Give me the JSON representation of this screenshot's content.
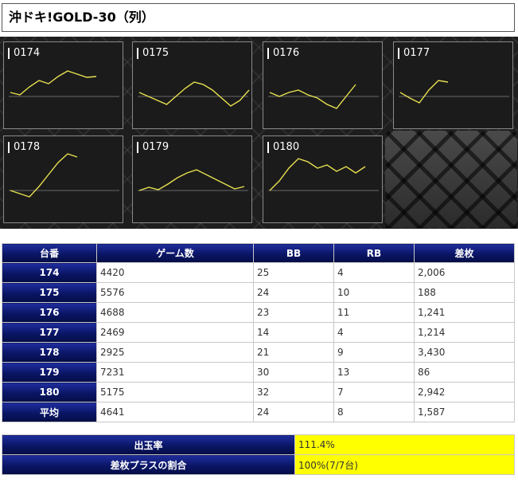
{
  "page": {
    "title": "沖ドキ!GOLD-30（列）"
  },
  "graphs": [
    {
      "label": "0174",
      "trend": [
        0.55,
        0.52,
        0.62,
        0.7,
        0.66,
        0.75,
        0.82,
        0.78,
        0.74,
        0.75
      ]
    },
    {
      "label": "0175",
      "trend": [
        0.55,
        0.5,
        0.45,
        0.4,
        0.5,
        0.6,
        0.68,
        0.65,
        0.58,
        0.48,
        0.38,
        0.45,
        0.58
      ]
    },
    {
      "label": "0176",
      "trend": [
        0.55,
        0.5,
        0.55,
        0.58,
        0.52,
        0.48,
        0.4,
        0.35,
        0.5,
        0.65
      ]
    },
    {
      "label": "0177",
      "trend": [
        0.55,
        0.48,
        0.42,
        0.58,
        0.7,
        0.68
      ]
    },
    {
      "label": "0178",
      "trend": [
        0.5,
        0.46,
        0.42,
        0.55,
        0.7,
        0.85,
        0.96,
        0.92
      ]
    },
    {
      "label": "0179",
      "trend": [
        0.5,
        0.54,
        0.51,
        0.58,
        0.66,
        0.72,
        0.76,
        0.7,
        0.64,
        0.58,
        0.52,
        0.55
      ]
    },
    {
      "label": "0180",
      "trend": [
        0.5,
        0.62,
        0.78,
        0.9,
        0.86,
        0.78,
        0.82,
        0.74,
        0.8,
        0.72,
        0.8
      ]
    }
  ],
  "table": {
    "headers": [
      "台番",
      "ゲーム数",
      "BB",
      "RB",
      "差枚"
    ],
    "rows": [
      [
        "174",
        "4420",
        "25",
        "4",
        "2,006"
      ],
      [
        "175",
        "5576",
        "24",
        "10",
        "188"
      ],
      [
        "176",
        "4688",
        "23",
        "11",
        "1,241"
      ],
      [
        "177",
        "2469",
        "14",
        "4",
        "1,214"
      ],
      [
        "178",
        "2925",
        "21",
        "9",
        "3,430"
      ],
      [
        "179",
        "7231",
        "30",
        "13",
        "86"
      ],
      [
        "180",
        "5175",
        "32",
        "7",
        "2,942"
      ],
      [
        "平均",
        "4641",
        "24",
        "8",
        "1,587"
      ]
    ]
  },
  "summary": [
    {
      "label": "出玉率",
      "value": "111.4%"
    },
    {
      "label": "差枚プラスの割合",
      "value": "100%(7/7台)"
    }
  ],
  "colors": {
    "line": "#e8e050",
    "header_bg": "#0a1565",
    "highlight": "#ffff00"
  }
}
